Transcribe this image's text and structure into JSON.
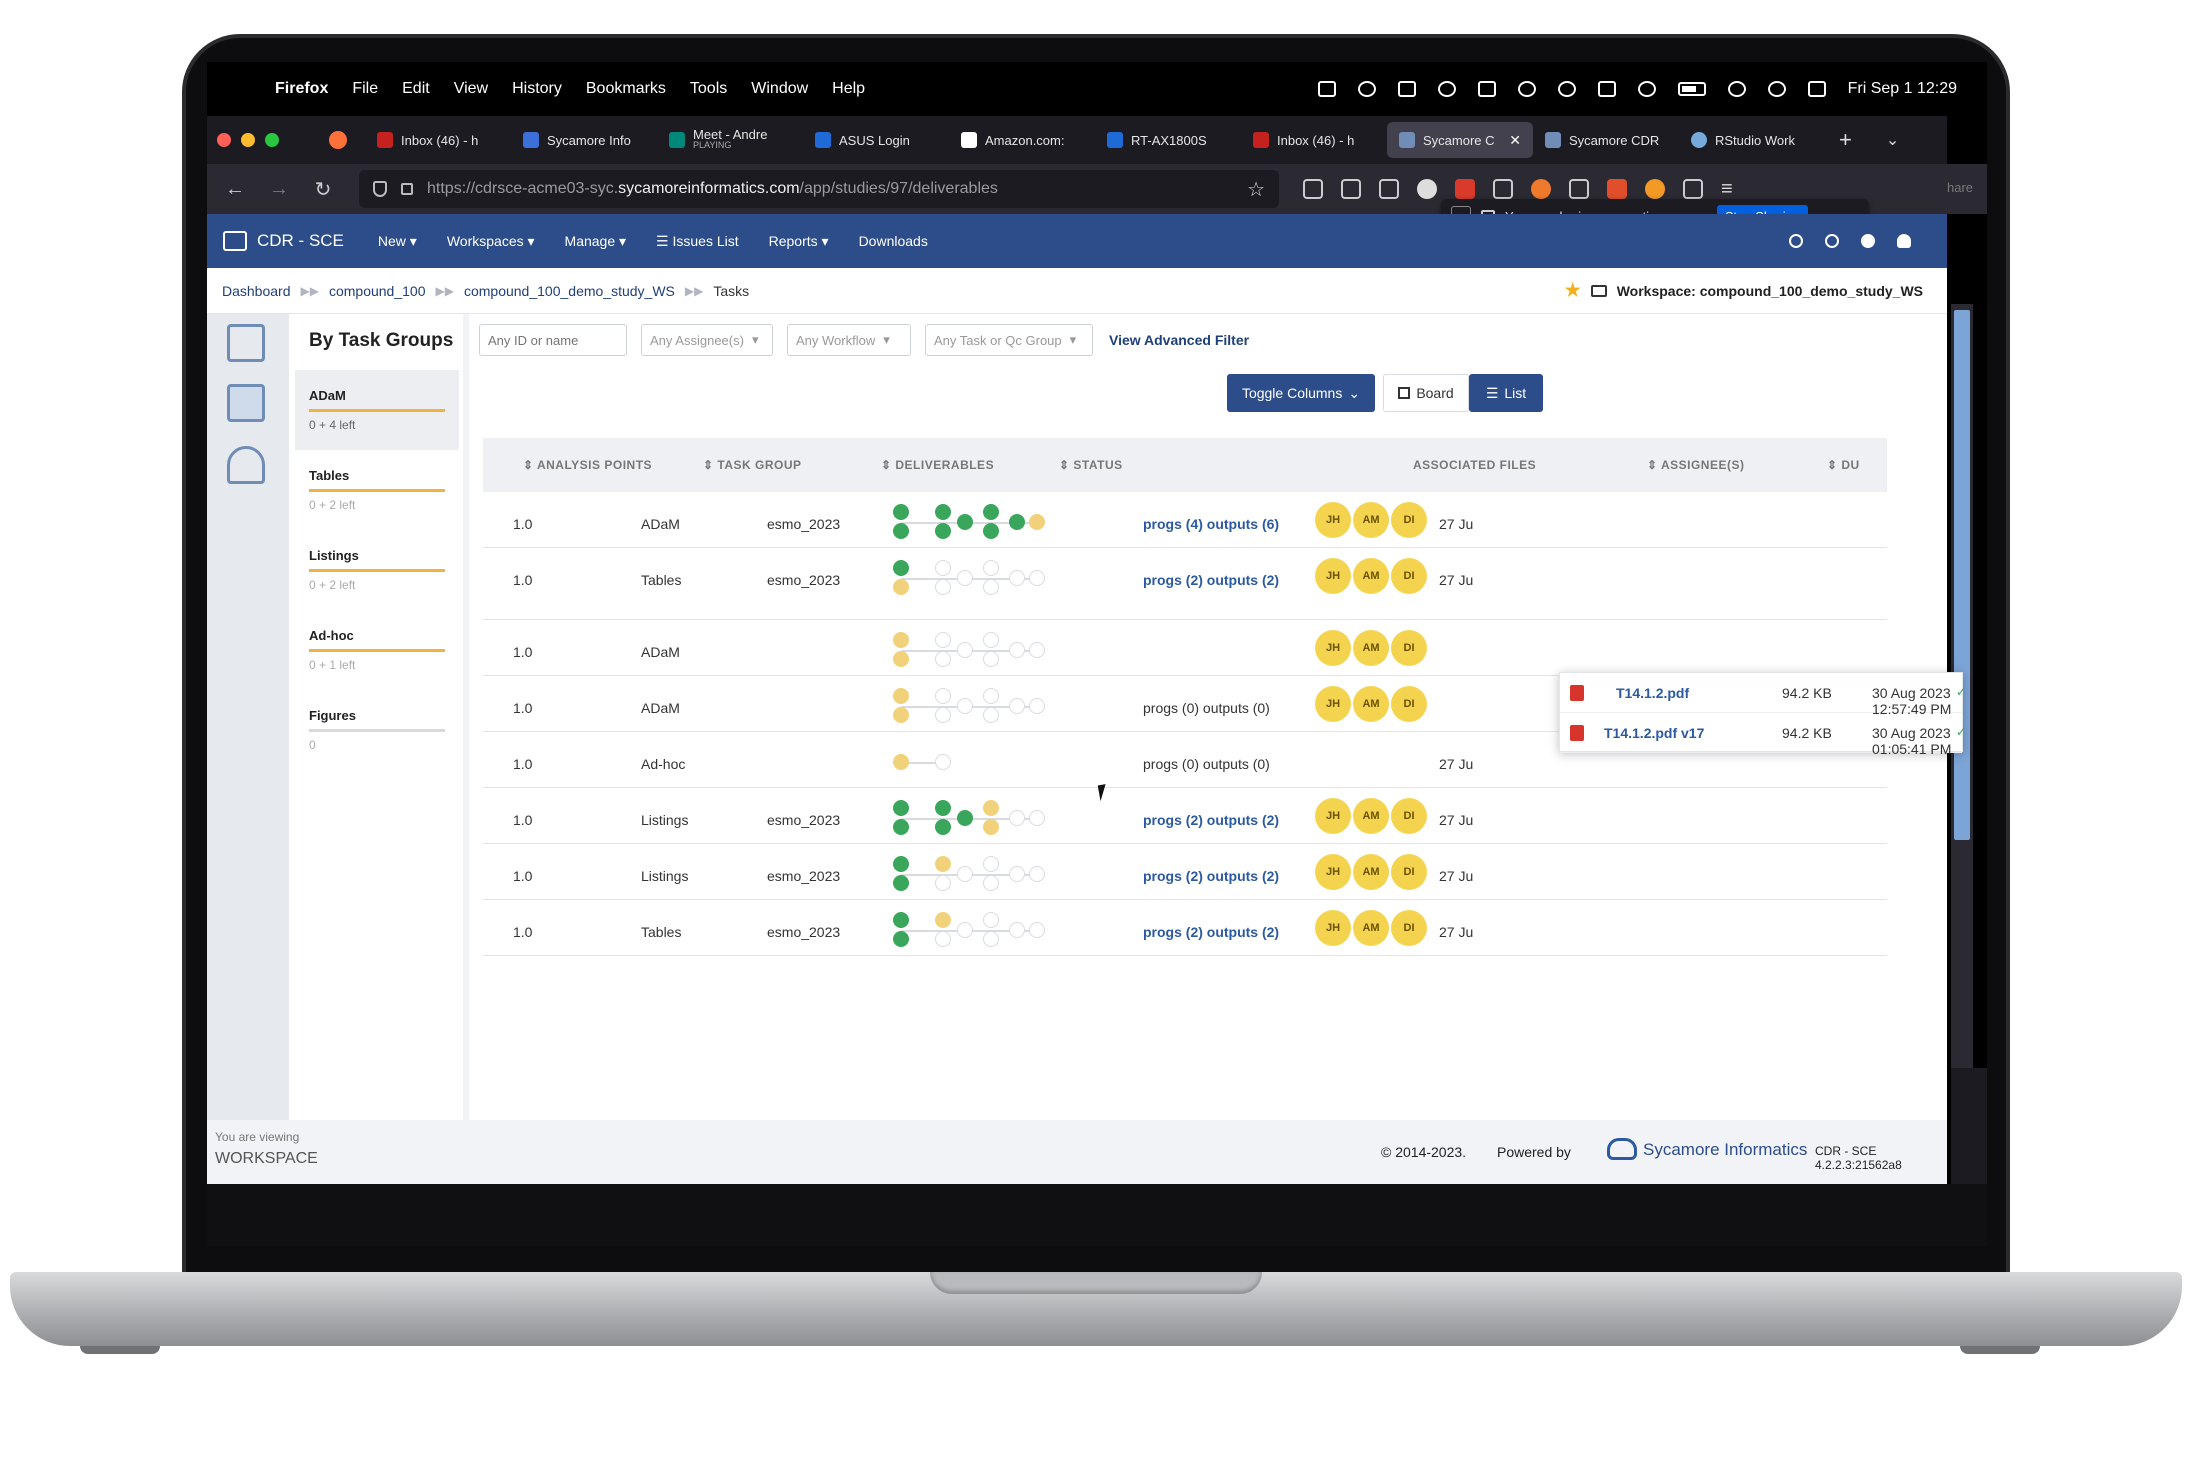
{
  "menubar": {
    "items": [
      "Firefox",
      "File",
      "Edit",
      "View",
      "History",
      "Bookmarks",
      "Tools",
      "Window",
      "Help"
    ],
    "clock": "Fri Sep 1  12:29"
  },
  "tabs": [
    {
      "label": "Inbox (46) - h",
      "color": "#c5221f"
    },
    {
      "label": "Sycamore Info",
      "color": "#3b6fd9"
    },
    {
      "label": "Meet - Andre",
      "sub": "PLAYING",
      "color": "#00897b"
    },
    {
      "label": "ASUS Login",
      "color": "#1e6ad6"
    },
    {
      "label": "Amazon.com:",
      "color": "#ffffff"
    },
    {
      "label": "RT-AX1800S",
      "color": "#1e6ad6"
    },
    {
      "label": "Inbox (46) - h",
      "color": "#c5221f"
    },
    {
      "label": "Sycamore C",
      "color": "#6f8db7",
      "active": true
    },
    {
      "label": "Sycamore CDR",
      "color": "#6f8db7"
    },
    {
      "label": "RStudio Work",
      "color": "#75aadb"
    }
  ],
  "url": {
    "prefix": "https://cdrsce-acme03-syc.",
    "host": "sycamoreinformatics.com",
    "path": "/app/studies/97/deliverables"
  },
  "share": {
    "message": "You are sharing your entire screen.",
    "stop_label": "Stop Sharing",
    "peek": "hare"
  },
  "app": {
    "brand": "CDR - SCE",
    "nav": [
      "New ▾",
      "Workspaces ▾",
      "Manage ▾",
      "☰  Issues List",
      "Reports ▾",
      "Downloads"
    ]
  },
  "breadcrumb": {
    "items": [
      "Dashboard",
      "compound_100",
      "compound_100_demo_study_WS"
    ],
    "current": "Tasks",
    "workspace": "Workspace: compound_100_demo_study_WS"
  },
  "groups": {
    "title": "By Task Groups",
    "items": [
      {
        "name": "ADaM",
        "left": "0 + 4 left"
      },
      {
        "name": "Tables",
        "left": "0 + 2 left"
      },
      {
        "name": "Listings",
        "left": "0 + 2 left"
      },
      {
        "name": "Ad-hoc",
        "left": "0 + 1 left"
      },
      {
        "name": "Figures",
        "left": "0"
      }
    ]
  },
  "filters": {
    "id_placeholder": "Any ID or name",
    "assignee": "Any Assignee(s)",
    "workflow": "Any Workflow",
    "taskgroup": "Any Task or Qc Group",
    "advanced": "View Advanced Filter"
  },
  "toolbar": {
    "toggle_columns": "Toggle Columns",
    "board": "Board",
    "list": "List"
  },
  "columns": {
    "analysis_points": "⇕ ANALYSIS POINTS",
    "task_group": "⇕ TASK GROUP",
    "deliverables": "⇕ DELIVERABLES",
    "status": "⇕ STATUS",
    "files": "ASSOCIATED FILES",
    "assignees": "⇕ ASSIGNEE(S)",
    "due": "⇕ DU"
  },
  "rows": [
    {
      "points": "1.0",
      "group": "ADaM",
      "deliverable": "esmo_2023",
      "files": "progs (4) outputs (6)",
      "files_link": true,
      "assignees": [
        "JH",
        "AM",
        "DI"
      ],
      "due": "27 Ju"
    },
    {
      "points": "1.0",
      "group": "Tables",
      "deliverable": "esmo_2023",
      "files": "progs (2) outputs (2)",
      "files_link": true,
      "assignees": [
        "JH",
        "AM",
        "DI"
      ],
      "due": "27 Ju"
    },
    {
      "points": "1.0",
      "group": "ADaM",
      "deliverable": "",
      "files": "",
      "files_link": false,
      "assignees": [
        "JH",
        "AM",
        "DI"
      ],
      "due": ""
    },
    {
      "points": "1.0",
      "group": "ADaM",
      "deliverable": "",
      "files": "progs (0) outputs (0)",
      "files_link": false,
      "assignees": [
        "JH",
        "AM",
        "DI"
      ],
      "due": ""
    },
    {
      "points": "1.0",
      "group": "Ad-hoc",
      "deliverable": "",
      "files": "progs (0) outputs (0)",
      "files_link": false,
      "assignees": [],
      "due": "27 Ju"
    },
    {
      "points": "1.0",
      "group": "Listings",
      "deliverable": "esmo_2023",
      "files": "progs (2) outputs (2)",
      "files_link": true,
      "assignees": [
        "JH",
        "AM",
        "DI"
      ],
      "due": "27 Ju"
    },
    {
      "points": "1.0",
      "group": "Listings",
      "deliverable": "esmo_2023",
      "files": "progs (2) outputs (2)",
      "files_link": true,
      "assignees": [
        "JH",
        "AM",
        "DI"
      ],
      "due": "27 Ju"
    },
    {
      "points": "1.0",
      "group": "Tables",
      "deliverable": "esmo_2023",
      "files": "progs (2) outputs (2)",
      "files_link": true,
      "assignees": [
        "JH",
        "AM",
        "DI"
      ],
      "due": "27 Ju"
    }
  ],
  "popup_files": [
    {
      "name": "T14.1.2.pdf",
      "size": "94.2 KB",
      "date": "30 Aug 2023 12:57:49 PM"
    },
    {
      "name": "T14.1.2.pdf v17",
      "size": "94.2 KB",
      "date": "30 Aug 2023 01:05:41 PM"
    }
  ],
  "footer": {
    "viewing": "You are viewing",
    "scope": "WORKSPACE",
    "copyright": "© 2014-2023.",
    "powered": "Powered by",
    "company": "Sycamore Informatics",
    "version": "CDR - SCE 4.2.2.3:21562a8"
  },
  "colors": {
    "header": "#2c4d8a",
    "status_done": "#3aa65c",
    "status_pending": "#f1d27a",
    "avatar": "#f4d34e",
    "group_bar": "#f0b240"
  }
}
